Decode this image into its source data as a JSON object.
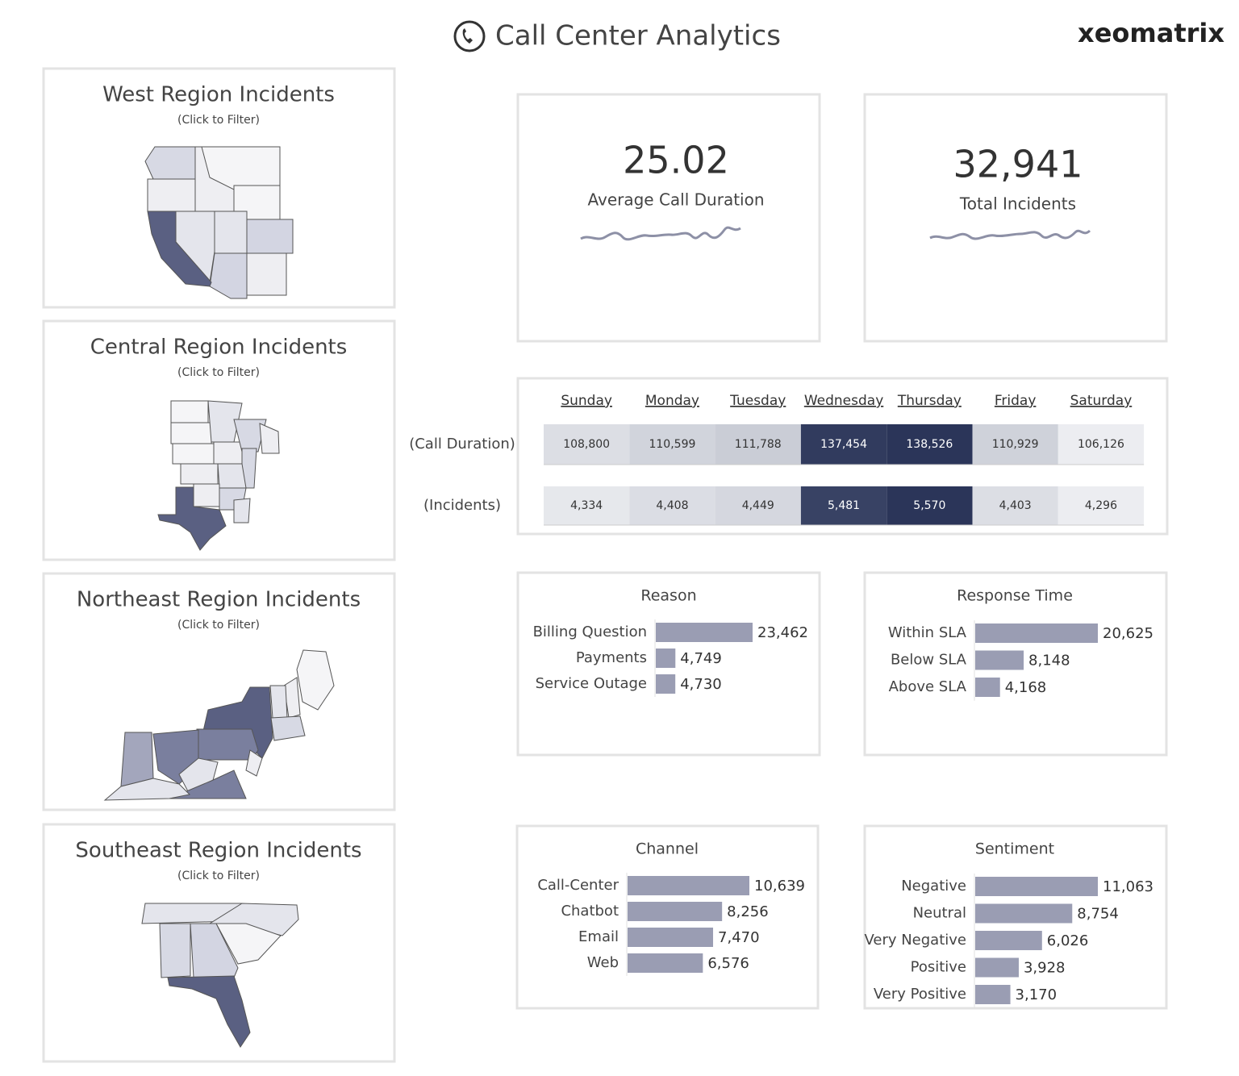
{
  "header": {
    "title": "Call Center Analytics",
    "brand": "xeomatrix"
  },
  "regions": [
    {
      "title": "West Region Incidents",
      "subtitle": "(Click to Filter)"
    },
    {
      "title": "Central Region Incidents",
      "subtitle": "(Click to Filter)"
    },
    {
      "title": "Northeast Region Incidents",
      "subtitle": "(Click to Filter)"
    },
    {
      "title": "Southeast Region Incidents",
      "subtitle": "(Click to Filter)"
    }
  ],
  "kpis": [
    {
      "value": "25.02",
      "label": "Average Call Duration"
    },
    {
      "value": "32,941",
      "label": "Total Incidents"
    }
  ],
  "heatmap": {
    "columns": [
      "Sunday",
      "Monday",
      "Tuesday",
      "Wednesday",
      "Thursday",
      "Friday",
      "Saturday"
    ],
    "rows": [
      {
        "label": "(Call Duration)",
        "values": [
          {
            "value": 108800,
            "label": "108,800"
          },
          {
            "value": 110599,
            "label": "110,599"
          },
          {
            "value": 111788,
            "label": "111,788"
          },
          {
            "value": 137454,
            "label": "137,454"
          },
          {
            "value": 138526,
            "label": "138,526"
          },
          {
            "value": 110929,
            "label": "110,929"
          },
          {
            "value": 106126,
            "label": "106,126"
          }
        ]
      },
      {
        "label": "(Incidents)",
        "values": [
          {
            "value": 4334,
            "label": "4,334"
          },
          {
            "value": 4408,
            "label": "4,408"
          },
          {
            "value": 4449,
            "label": "4,449"
          },
          {
            "value": 5481,
            "label": "5,481"
          },
          {
            "value": 5570,
            "label": "5,570"
          },
          {
            "value": 4403,
            "label": "4,403"
          },
          {
            "value": 4296,
            "label": "4,296"
          }
        ]
      }
    ]
  },
  "bar_charts": [
    {
      "title": "Reason",
      "categories": [
        "Billing Question",
        "Payments",
        "Service Outage"
      ],
      "values": [
        23462,
        4749,
        4730
      ],
      "value_labels": [
        "23,462",
        "4,749",
        "4,730"
      ],
      "color": "#9a9db3"
    },
    {
      "title": "Response Time",
      "categories": [
        "Within SLA",
        "Below SLA",
        "Above SLA"
      ],
      "values": [
        20625,
        8148,
        4168
      ],
      "value_labels": [
        "20,625",
        "8,148",
        "4,168"
      ],
      "color": "#9a9db3"
    },
    {
      "title": "Channel",
      "categories": [
        "Call-Center",
        "Chatbot",
        "Email",
        "Web"
      ],
      "values": [
        10639,
        8256,
        7470,
        6576
      ],
      "value_labels": [
        "10,639",
        "8,256",
        "7,470",
        "6,576"
      ],
      "color": "#9a9db3"
    },
    {
      "title": "Sentiment",
      "categories": [
        "Negative",
        "Neutral",
        "Very Negative",
        "Positive",
        "Very Positive"
      ],
      "values": [
        11063,
        8754,
        6026,
        3928,
        3170
      ],
      "value_labels": [
        "11,063",
        "8,754",
        "6,026",
        "3,928",
        "3,170"
      ],
      "color": "#9a9db3"
    }
  ]
}
